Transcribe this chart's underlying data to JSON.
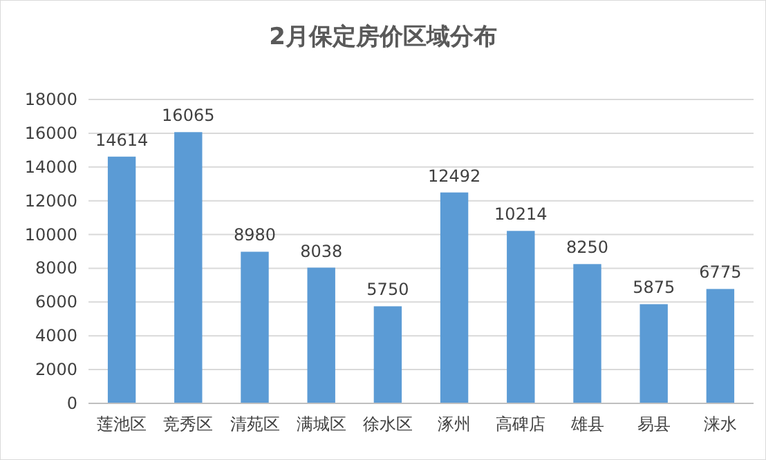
{
  "chart_data": {
    "type": "bar",
    "title": "2月保定房价区域分布",
    "categories": [
      "莲池区",
      "竞秀区",
      "清苑区",
      "满城区",
      "徐水区",
      "涿州",
      "高碑店",
      "雄县",
      "易县",
      "涞水"
    ],
    "values": [
      14614,
      16065,
      8980,
      8038,
      5750,
      12492,
      10214,
      8250,
      5875,
      6775
    ],
    "color": "#5b9bd5",
    "ylim": [
      0,
      18000
    ],
    "yticks": [
      0,
      2000,
      4000,
      6000,
      8000,
      10000,
      12000,
      14000,
      16000,
      18000
    ],
    "grid": "y",
    "data_labels": true
  }
}
